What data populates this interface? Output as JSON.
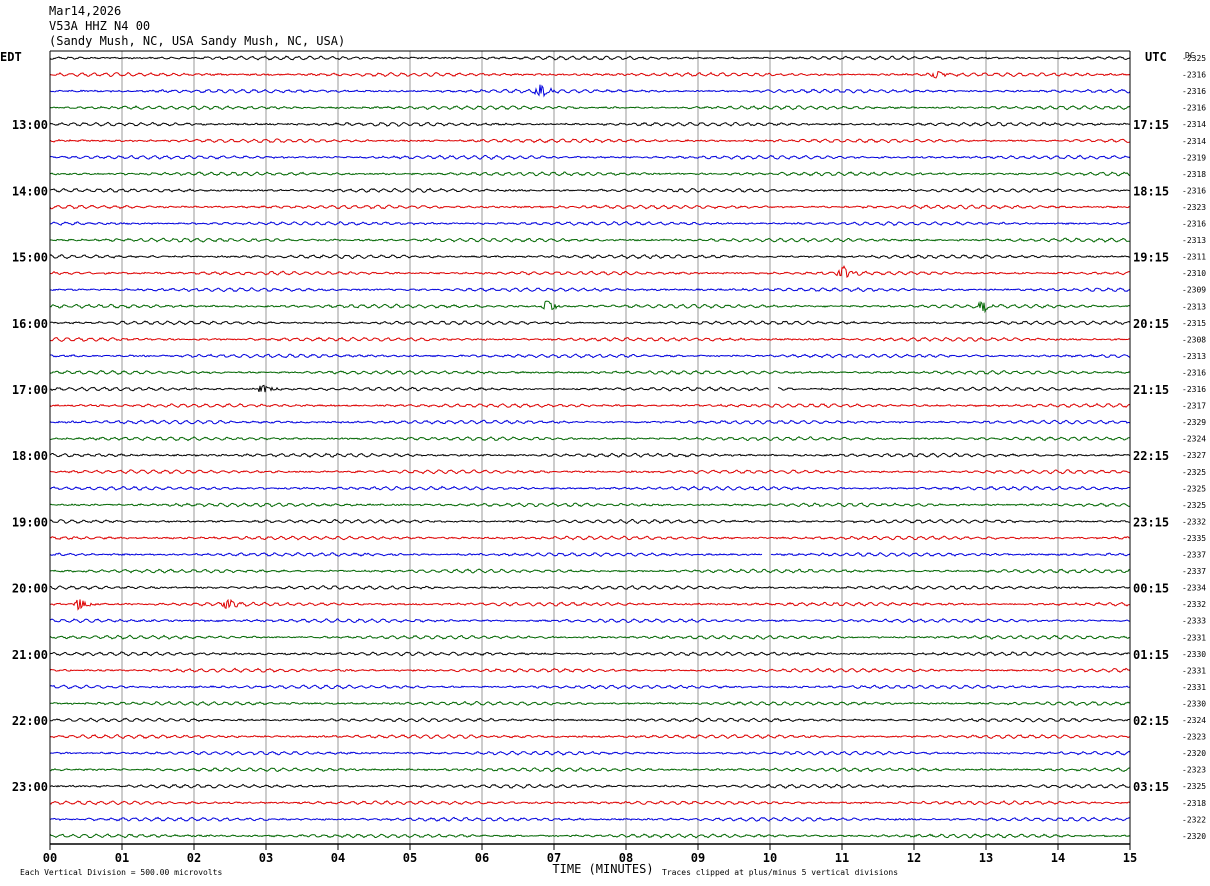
{
  "header": {
    "date": "Mar14,2026",
    "station": "V53A HHZ N4 00",
    "location": "(Sandy Mush, NC, USA Sandy Mush, NC, USA)"
  },
  "labels": {
    "left_tz": "EDT",
    "right_tz": "UTC",
    "dc_header": "DC",
    "xlabel": "TIME (MINUTES)",
    "scale_note": "Each Vertical Division =  500.00 microvolts",
    "clip_note": "Traces clipped at plus/minus 5 vertical divisions"
  },
  "colors": {
    "cycle": [
      "#000000",
      "#dd0000",
      "#0000dd",
      "#006600"
    ],
    "grid": "#999999"
  },
  "chart_data": {
    "type": "line",
    "title": "",
    "xlabel": "TIME (MINUTES)",
    "xlim": [
      0,
      15
    ],
    "x_ticks": [
      "00",
      "01",
      "02",
      "03",
      "04",
      "05",
      "06",
      "07",
      "08",
      "09",
      "10",
      "11",
      "12",
      "13",
      "14",
      "15"
    ],
    "left_hour_labels": [
      {
        "row": 4,
        "text": "13:00"
      },
      {
        "row": 8,
        "text": "14:00"
      },
      {
        "row": 12,
        "text": "15:00"
      },
      {
        "row": 16,
        "text": "16:00"
      },
      {
        "row": 20,
        "text": "17:00"
      },
      {
        "row": 24,
        "text": "18:00"
      },
      {
        "row": 28,
        "text": "19:00"
      },
      {
        "row": 32,
        "text": "20:00"
      },
      {
        "row": 36,
        "text": "21:00"
      },
      {
        "row": 40,
        "text": "22:00"
      },
      {
        "row": 44,
        "text": "23:00"
      }
    ],
    "right_hour_labels": [
      {
        "row": 4,
        "text": "17:15"
      },
      {
        "row": 8,
        "text": "18:15"
      },
      {
        "row": 12,
        "text": "19:15"
      },
      {
        "row": 16,
        "text": "20:15"
      },
      {
        "row": 20,
        "text": "21:15"
      },
      {
        "row": 24,
        "text": "22:15"
      },
      {
        "row": 28,
        "text": "23:15"
      },
      {
        "row": 32,
        "text": "00:15"
      },
      {
        "row": 36,
        "text": "01:15"
      },
      {
        "row": 40,
        "text": "02:15"
      },
      {
        "row": 44,
        "text": "03:15"
      }
    ],
    "dc_offsets": [
      "-2325",
      "-2316",
      "-2316",
      "-2316",
      "-2314",
      "-2314",
      "-2319",
      "-2318",
      "-2316",
      "-2323",
      "-2316",
      "-2313",
      "-2311",
      "-2310",
      "-2309",
      "-2313",
      "-2315",
      "-2308",
      "-2313",
      "-2316",
      "-2316",
      "-2317",
      "-2329",
      "-2324",
      "-2327",
      "-2325",
      "-2325",
      "-2325",
      "-2332",
      "-2335",
      "-2337",
      "-2337",
      "-2334",
      "-2332",
      "-2333",
      "-2331",
      "-2330",
      "-2331",
      "-2331",
      "-2330",
      "-2324",
      "-2323",
      "-2320",
      "-2323",
      "-2325",
      "-2318",
      "-2322",
      "-2320"
    ],
    "events": [
      {
        "row": 1,
        "minute": 12.3,
        "amp": 4
      },
      {
        "row": 2,
        "minute": 6.8,
        "amp": 6
      },
      {
        "row": 13,
        "minute": 11.0,
        "amp": 7
      },
      {
        "row": 15,
        "minute": 6.9,
        "amp": 7
      },
      {
        "row": 15,
        "minute": 12.95,
        "amp": 6
      },
      {
        "row": 20,
        "minute": 2.95,
        "amp": 5
      },
      {
        "row": 33,
        "minute": 0.4,
        "amp": 6
      },
      {
        "row": 33,
        "minute": 2.45,
        "amp": 6
      }
    ],
    "gaps": [
      {
        "row": 20,
        "minute": 10.05
      },
      {
        "row": 30,
        "minute": 9.95
      }
    ]
  }
}
